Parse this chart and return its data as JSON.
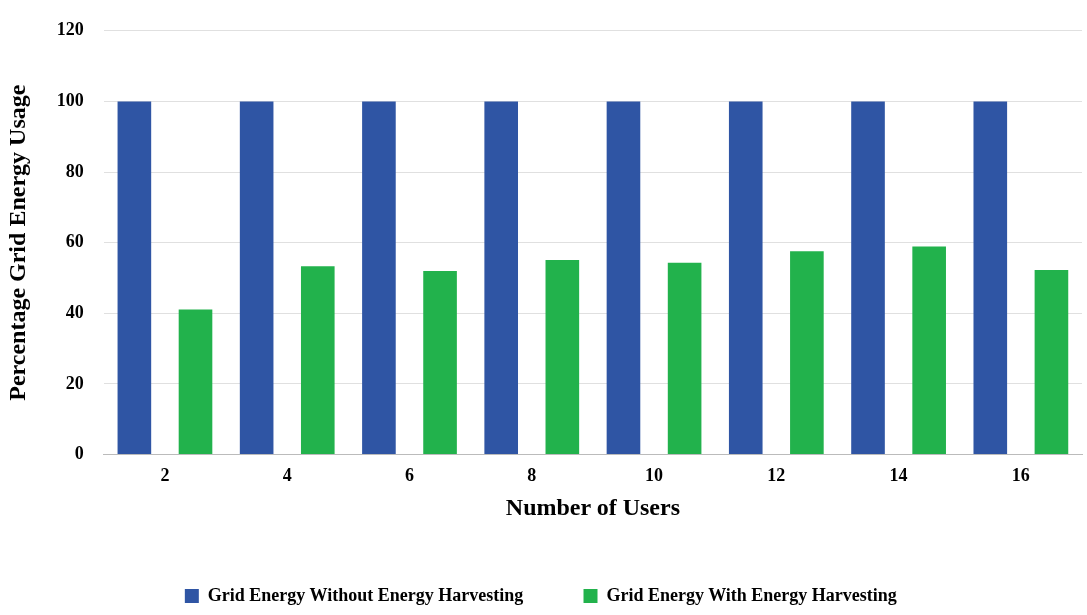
{
  "chart_data": {
    "type": "bar",
    "xlabel": "Number of Users",
    "ylabel": "Percentage Grid Energy Usage",
    "categories": [
      "2",
      "4",
      "6",
      "8",
      "10",
      "12",
      "14",
      "16"
    ],
    "series": [
      {
        "name": "Grid Energy Without Energy Harvesting",
        "color": "#2f55a4",
        "values": [
          100,
          100,
          100,
          100,
          100,
          100,
          100,
          100
        ]
      },
      {
        "name": "Grid Energy With Energy Harvesting",
        "color": "#22b24c",
        "values": [
          41.1,
          53.3,
          52.0,
          55.1,
          54.3,
          57.6,
          58.9,
          52.3
        ]
      }
    ],
    "ylim": [
      0,
      120
    ],
    "yticks": [
      0,
      20,
      40,
      60,
      80,
      100,
      120
    ],
    "grid": "y",
    "legend": "bottom"
  }
}
